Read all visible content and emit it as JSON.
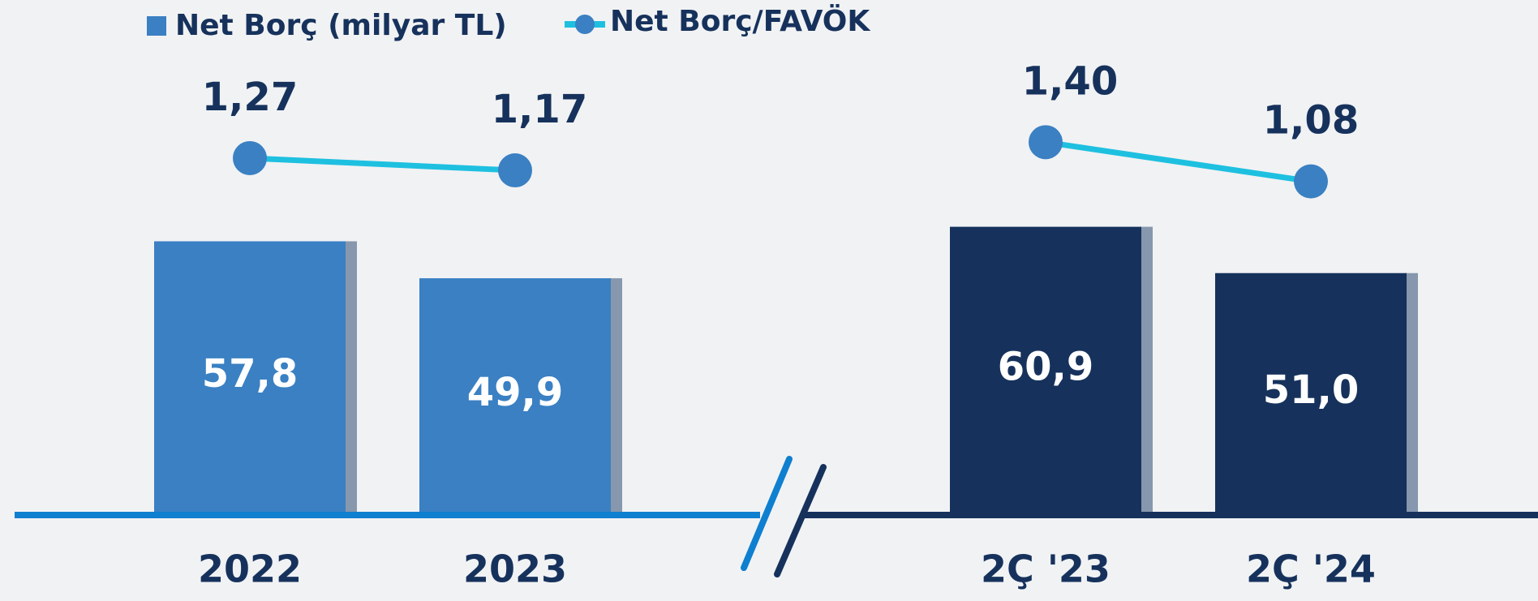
{
  "chart_data": {
    "type": "bar",
    "categories": [
      "2022",
      "2023",
      null,
      "2Ç '23",
      "2Ç '24"
    ],
    "series": [
      {
        "name": "Net Borç (milyar TL)",
        "type": "bar",
        "color": "#3a80c3",
        "colors": [
          "#3a80c3",
          "#3a80c3",
          null,
          "#16325c",
          "#16325c"
        ],
        "values": [
          57.8,
          49.9,
          null,
          60.9,
          51.0
        ],
        "value_labels": [
          "57,8",
          "49,9",
          null,
          "60,9",
          "51,0"
        ]
      },
      {
        "name": "Net Borç/FAVÖK",
        "type": "line",
        "color": "#1ec0e0",
        "marker_color": "#3a80c3",
        "values": [
          1.27,
          1.17,
          null,
          1.4,
          1.08
        ],
        "value_labels": [
          "1,27",
          "1,17",
          null,
          "1,40",
          "1,08"
        ]
      }
    ]
  }
}
